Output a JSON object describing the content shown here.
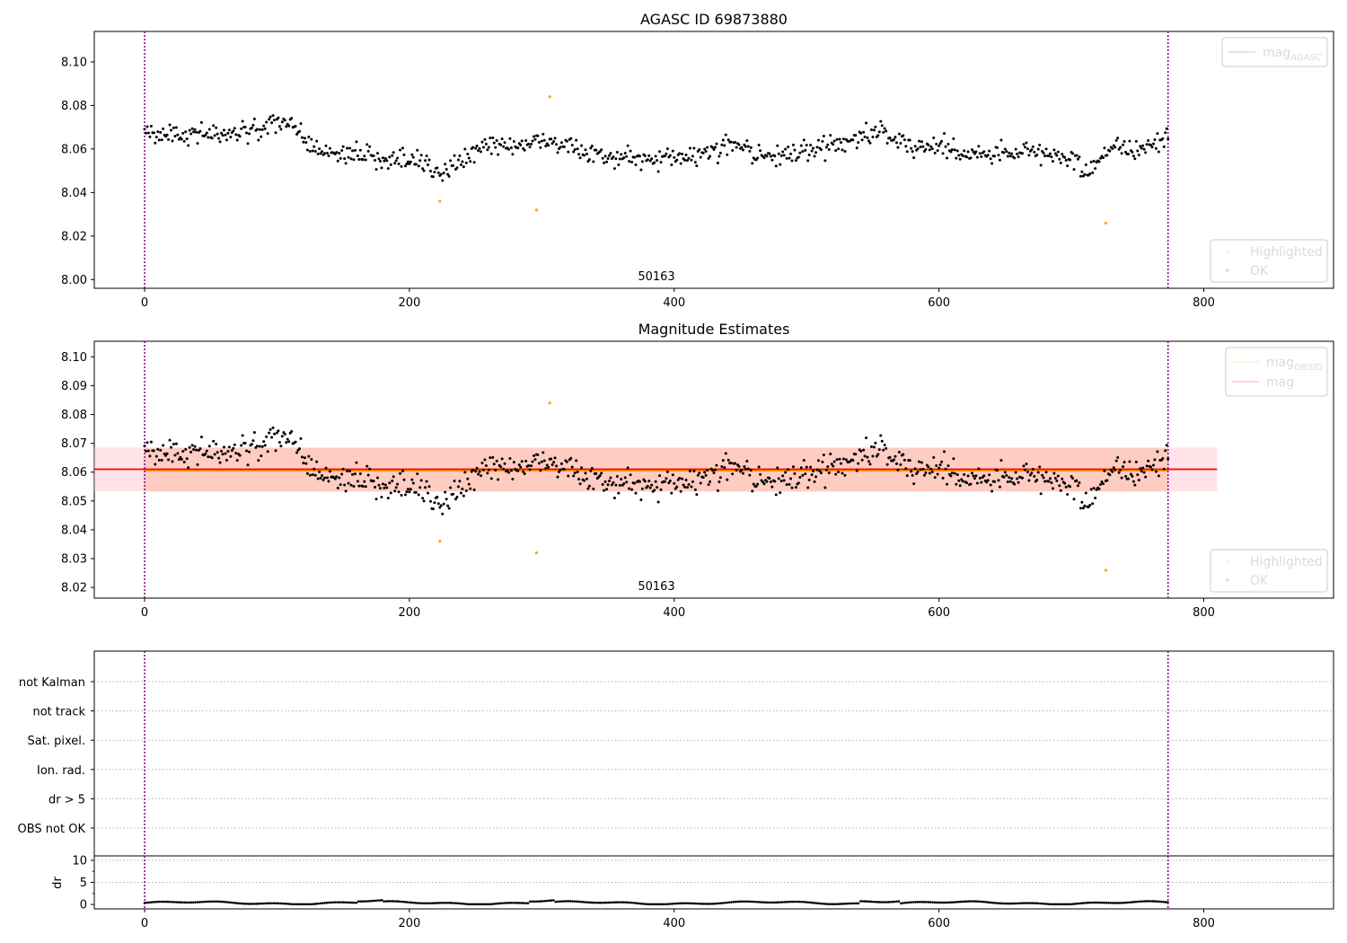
{
  "chart_data": [
    {
      "type": "scatter",
      "title": "AGASC ID 69873880",
      "x_range": [
        -38,
        898
      ],
      "ylim": [
        7.996,
        8.114
      ],
      "xticks": [
        "0",
        "200",
        "400",
        "600",
        "800"
      ],
      "yticks": [
        "8.00",
        "8.02",
        "8.04",
        "8.06",
        "8.08",
        "8.10"
      ],
      "obs_label": "50163",
      "obs_boundaries": [
        0,
        773
      ],
      "legend_lines": [
        {
          "label": "mag",
          "sub": "AGASC",
          "color": "#008000"
        }
      ],
      "legend_points": [
        {
          "label": "Highlighted",
          "color": "#ffa500"
        },
        {
          "label": "OK",
          "color": "#000000"
        }
      ],
      "highlighted_points": [
        {
          "x": 223,
          "y": 8.036
        },
        {
          "x": 296,
          "y": 8.032
        },
        {
          "x": 306,
          "y": 8.084
        },
        {
          "x": 726,
          "y": 8.026
        }
      ]
    },
    {
      "type": "scatter",
      "title": "Magnitude Estimates",
      "x_range": [
        -38,
        898
      ],
      "ylim": [
        8.0163,
        8.1054
      ],
      "xticks": [
        "0",
        "200",
        "400",
        "600",
        "800"
      ],
      "yticks": [
        "8.02",
        "8.03",
        "8.04",
        "8.05",
        "8.06",
        "8.07",
        "8.08",
        "8.09",
        "8.10"
      ],
      "obs_label": "50163",
      "obs_boundaries": [
        0,
        773
      ],
      "mag": 8.061,
      "mag_band": [
        8.0533,
        8.0685
      ],
      "mag_obsid": 8.0605,
      "mag_obsid_band": [
        8.0533,
        8.0685
      ],
      "legend_lines": [
        {
          "label": "mag",
          "sub": "OBSID",
          "color": "#ffa500"
        },
        {
          "label": "mag",
          "sub": "",
          "color": "#ff0000"
        }
      ],
      "legend_points": [
        {
          "label": "Highlighted",
          "color": "#ffa500"
        },
        {
          "label": "OK",
          "color": "#000000"
        }
      ],
      "highlighted_points": [
        {
          "x": 223,
          "y": 8.036
        },
        {
          "x": 296,
          "y": 8.032
        },
        {
          "x": 306,
          "y": 8.084
        },
        {
          "x": 726,
          "y": 8.026
        }
      ]
    },
    {
      "type": "scatter",
      "title": "",
      "categories": [
        "not Kalman",
        "not track",
        "Sat. pixel.",
        "Ion. rad.",
        "dr > 5",
        "OBS not OK"
      ],
      "obs_boundaries": [
        0,
        773
      ]
    },
    {
      "type": "scatter",
      "ylabel": "dr",
      "ylim": [
        -1,
        11
      ],
      "yticks": [
        "0",
        "5",
        "10"
      ],
      "xticks": [
        "0",
        "200",
        "400",
        "600",
        "800"
      ],
      "obs_boundaries": [
        0,
        773
      ]
    }
  ],
  "colors": {
    "ok": "#000000",
    "highlighted": "#ffa500",
    "boundary": "#800080",
    "mag": "#ff0000",
    "mag_obsid": "#ffa500",
    "mag_band": "#ffc0cb",
    "mag_obsid_band": "#ffa07a"
  }
}
